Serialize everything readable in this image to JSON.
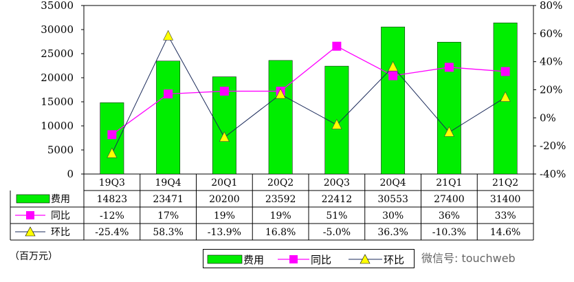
{
  "chart_data": {
    "type": "bar",
    "categories": [
      "19Q3",
      "19Q4",
      "20Q1",
      "20Q2",
      "20Q3",
      "20Q4",
      "21Q1",
      "21Q2"
    ],
    "ylim_left": [
      0,
      35000
    ],
    "ylim_right": [
      -40,
      80
    ],
    "left_ticks": [
      "35000",
      "30000",
      "25000",
      "20000",
      "15000",
      "10000",
      "5000",
      "0"
    ],
    "right_ticks": [
      "80%",
      "60%",
      "40%",
      "20%",
      "0%",
      "-20%",
      "-40%"
    ],
    "series": [
      {
        "name": "费用",
        "kind": "bar",
        "axis": "left",
        "color": "#00ee00",
        "values": [
          14823,
          23471,
          20200,
          23592,
          22412,
          30553,
          27400,
          31400
        ],
        "labels": [
          "14823",
          "23471",
          "20200",
          "23592",
          "22412",
          "30553",
          "27400",
          "31400"
        ]
      },
      {
        "name": "同比",
        "kind": "line",
        "axis": "right",
        "color": "#ff00ff",
        "marker": "square",
        "values": [
          -12,
          17,
          19,
          19,
          51,
          30,
          36,
          33
        ],
        "labels": [
          "-12%",
          "17%",
          "19%",
          "19%",
          "51%",
          "30%",
          "36%",
          "33%"
        ]
      },
      {
        "name": "环比",
        "kind": "line",
        "axis": "right",
        "color": "#1a2a5a",
        "marker": "triangle",
        "marker_color": "#ffff00",
        "values": [
          -25.4,
          58.3,
          -13.9,
          16.8,
          -5.0,
          36.3,
          -10.3,
          14.6
        ],
        "labels": [
          "-25.4%",
          "58.3%",
          "-13.9%",
          "16.8%",
          "-5.0%",
          "36.3%",
          "-10.3%",
          "14.6%"
        ]
      }
    ]
  },
  "unit_label": "（百万元）",
  "watermark": "微信号: touchweb"
}
